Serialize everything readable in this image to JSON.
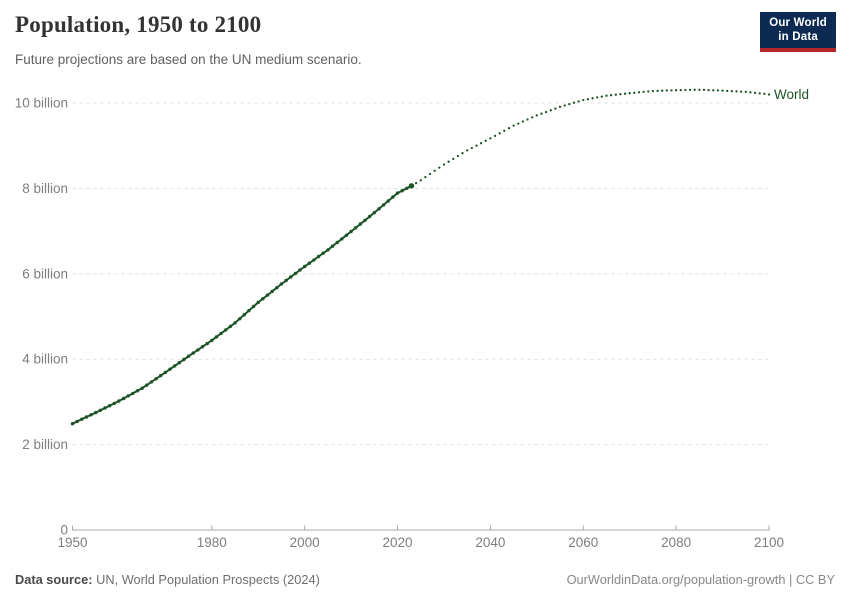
{
  "header": {
    "title": "Population, 1950 to 2100",
    "subtitle": "Future projections are based on the UN medium scenario.",
    "logo": {
      "line1": "Our World",
      "line2": "in Data"
    }
  },
  "chart_data": {
    "type": "line",
    "title": "Population, 1950 to 2100",
    "xlabel": "",
    "ylabel": "",
    "xlim": [
      1950,
      2100
    ],
    "ylim": [
      0,
      10.75
    ],
    "grid": "dashed-horizontal",
    "legend_position": "end-of-line-label",
    "x_ticks": [
      1950,
      1980,
      2000,
      2020,
      2040,
      2060,
      2080,
      2100
    ],
    "y_ticks": [
      {
        "value": 0,
        "label": "0"
      },
      {
        "value": 2,
        "label": "2 billion"
      },
      {
        "value": 4,
        "label": "4 billion"
      },
      {
        "value": 6,
        "label": "6 billion"
      },
      {
        "value": 8,
        "label": "8 billion"
      },
      {
        "value": 10,
        "label": "10 billion"
      }
    ],
    "series": [
      {
        "name": "World",
        "unit": "billion",
        "segments": [
          {
            "kind": "historical",
            "style": "beaded-solid",
            "points": [
              [
                1950,
                2.49
              ],
              [
                1955,
                2.75
              ],
              [
                1960,
                3.02
              ],
              [
                1965,
                3.32
              ],
              [
                1970,
                3.69
              ],
              [
                1975,
                4.07
              ],
              [
                1980,
                4.44
              ],
              [
                1985,
                4.85
              ],
              [
                1990,
                5.33
              ],
              [
                1995,
                5.76
              ],
              [
                2000,
                6.17
              ],
              [
                2005,
                6.56
              ],
              [
                2010,
                6.99
              ],
              [
                2015,
                7.43
              ],
              [
                2020,
                7.89
              ],
              [
                2023,
                8.06
              ]
            ]
          },
          {
            "kind": "projection",
            "style": "dotted",
            "points": [
              [
                2023,
                8.06
              ],
              [
                2025,
                8.19
              ],
              [
                2030,
                8.56
              ],
              [
                2035,
                8.89
              ],
              [
                2040,
                9.17
              ],
              [
                2045,
                9.47
              ],
              [
                2050,
                9.71
              ],
              [
                2055,
                9.91
              ],
              [
                2060,
                10.07
              ],
              [
                2065,
                10.17
              ],
              [
                2070,
                10.23
              ],
              [
                2075,
                10.28
              ],
              [
                2080,
                10.3
              ],
              [
                2085,
                10.31
              ],
              [
                2090,
                10.29
              ],
              [
                2095,
                10.26
              ],
              [
                2100,
                10.2
              ]
            ]
          }
        ]
      }
    ],
    "colors": {
      "world_line": "#1d5426",
      "grid": "#dedede",
      "axis": "#a8a8a8",
      "tick_label": "#7e7e7e",
      "logo_navy": "#0d2b52",
      "logo_red": "#b5252c"
    }
  },
  "footer": {
    "datasource_label": "Data source:",
    "datasource_text": "UN, World Population Prospects (2024)",
    "credit": "OurWorldinData.org/population-growth | CC BY"
  }
}
